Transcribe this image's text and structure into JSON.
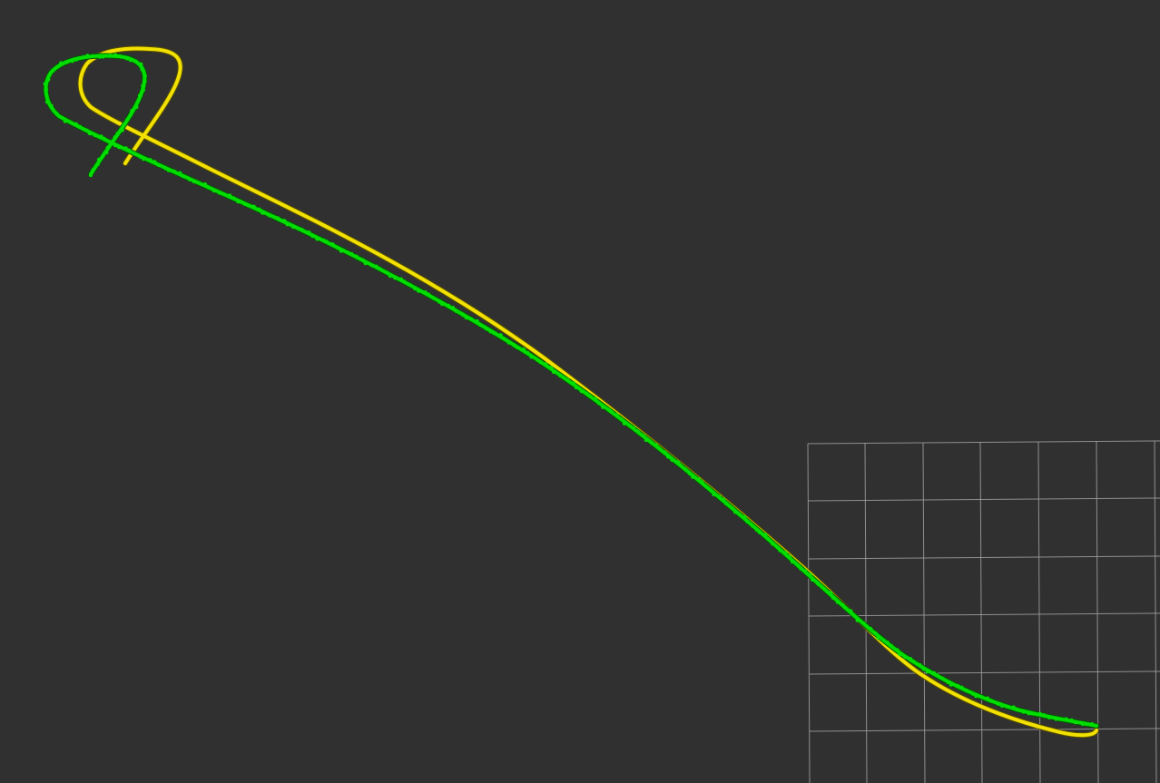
{
  "viewport": {
    "background_color": "#303030"
  },
  "grid": {
    "color": "#a0a0a0",
    "cell_count_visible": "6x6"
  },
  "trajectories": [
    {
      "name": "",
      "color": "#f2e100",
      "role": "reference-path"
    },
    {
      "name": "",
      "color": "#00dd00",
      "role": "estimated-path"
    }
  ]
}
